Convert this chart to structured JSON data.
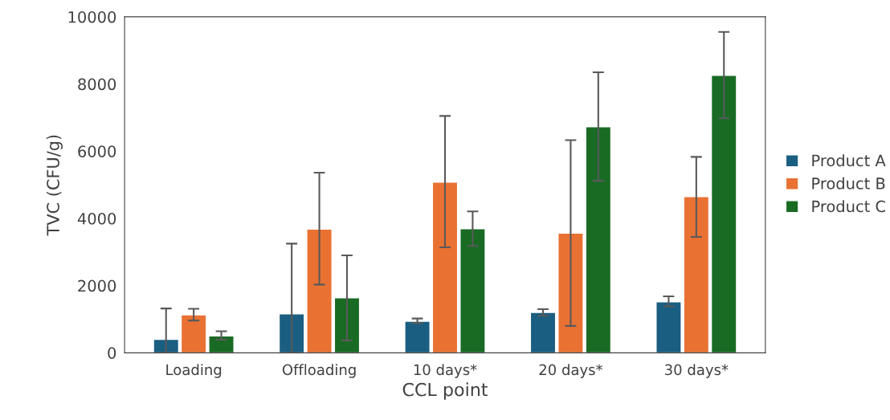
{
  "chart_data": {
    "type": "bar",
    "xlabel": "CCL point",
    "ylabel": "TVC (CFU/g)",
    "categories": [
      "Loading",
      "Offloading",
      "10 days*",
      "20 days*",
      "30 days*"
    ],
    "series": [
      {
        "name": "Product A",
        "color": "#1a5e82",
        "values": [
          400,
          1160,
          940,
          1200,
          1520
        ],
        "errors": [
          [
            0,
            1320
          ],
          [
            0,
            3250
          ],
          [
            880,
            1020
          ],
          [
            1100,
            1300
          ],
          [
            1380,
            1680
          ]
        ]
      },
      {
        "name": "Product B",
        "color": "#e97132",
        "values": [
          1130,
          3680,
          5080,
          3560,
          4650
        ],
        "errors": [
          [
            960,
            1310
          ],
          [
            2030,
            5360
          ],
          [
            3140,
            7050
          ],
          [
            800,
            6330
          ],
          [
            3450,
            5830
          ]
        ]
      },
      {
        "name": "Product C",
        "color": "#196b24",
        "values": [
          500,
          1640,
          3690,
          6730,
          8260
        ],
        "errors": [
          [
            390,
            640
          ],
          [
            370,
            2900
          ],
          [
            3180,
            4210
          ],
          [
            5120,
            8350
          ],
          [
            6980,
            9550
          ]
        ]
      }
    ],
    "ylim": [
      0,
      10000
    ],
    "yticks": [
      0,
      2000,
      4000,
      6000,
      8000,
      10000
    ],
    "grid": false,
    "legend": "right"
  }
}
